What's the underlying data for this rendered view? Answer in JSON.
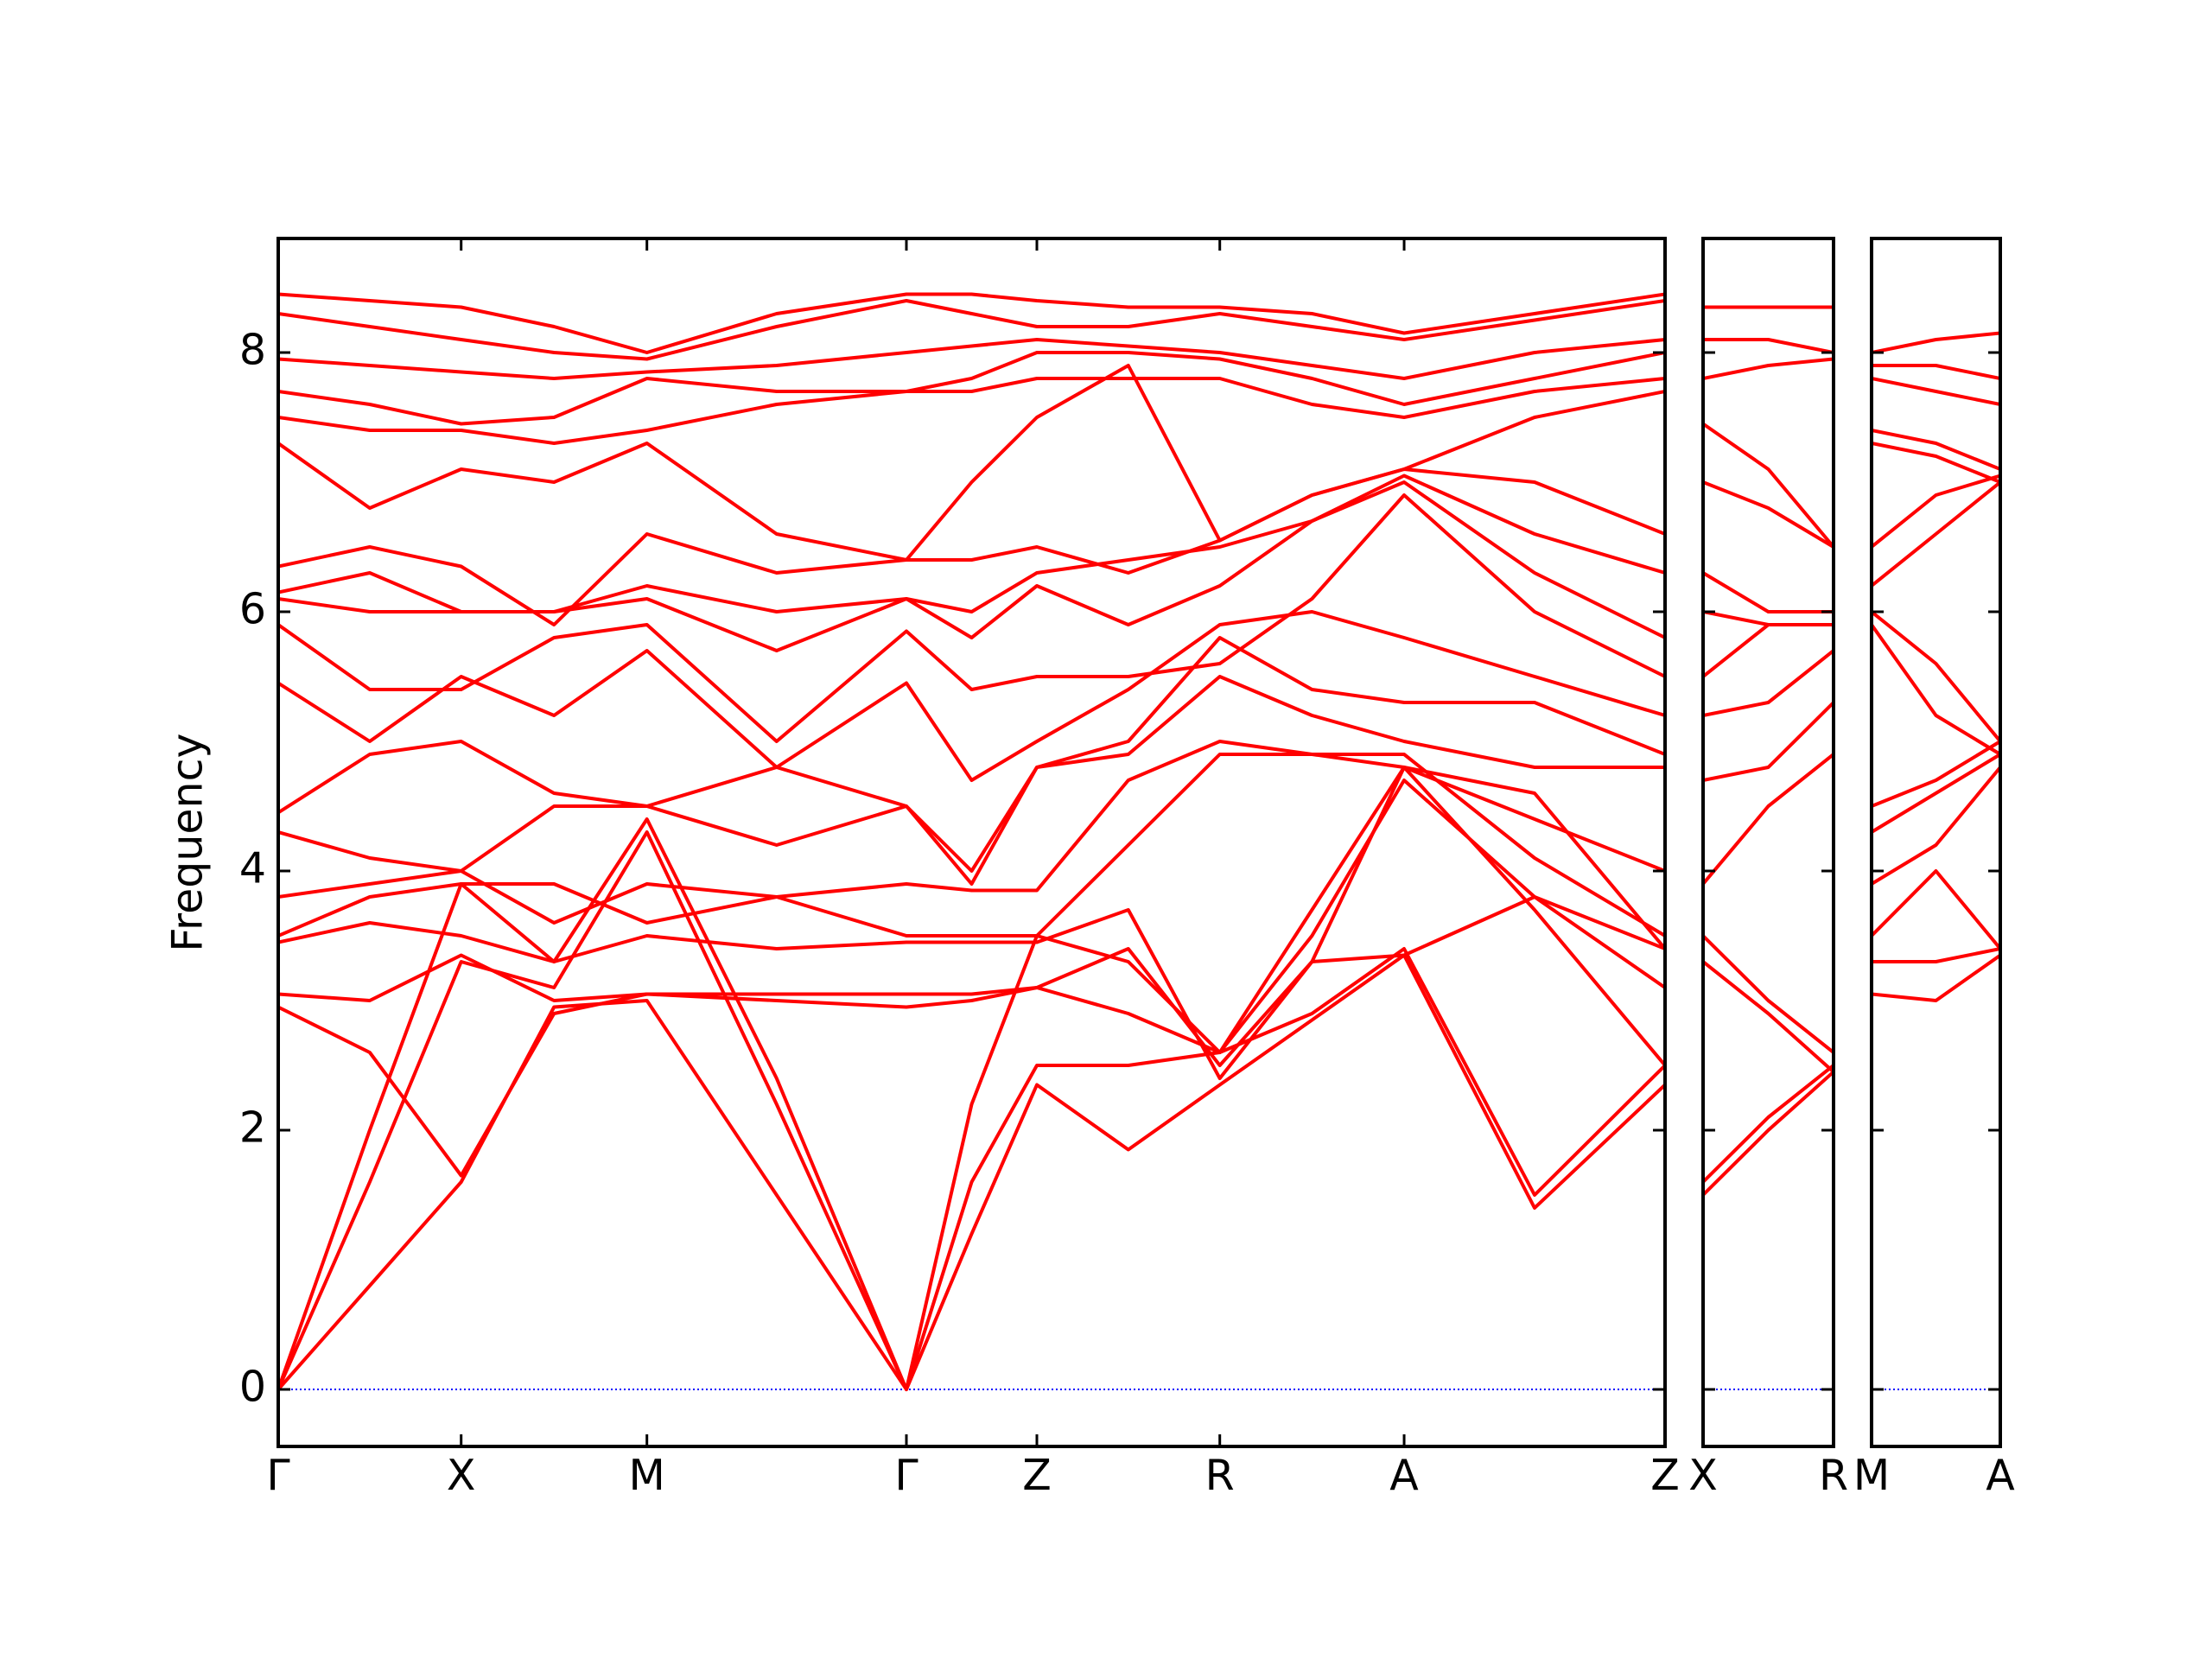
{
  "chart_data": [
    {
      "type": "line",
      "ylabel": "Frequency",
      "color": "#ff0000",
      "ylim": [
        -0.44,
        8.88
      ],
      "yticks": [
        0,
        2,
        4,
        6,
        8
      ],
      "show_ytick_labels": true,
      "reference_line": {
        "value": 0,
        "color": "#0000ff"
      },
      "xlim": [
        0,
        9.78
      ],
      "xticks": [
        {
          "value": 0,
          "label": "Γ"
        },
        {
          "value": 1.29,
          "label": "X"
        },
        {
          "value": 2.6,
          "label": "M"
        },
        {
          "value": 4.43,
          "label": "Γ"
        },
        {
          "value": 5.35,
          "label": "Z"
        },
        {
          "value": 6.64,
          "label": "R"
        },
        {
          "value": 7.94,
          "label": "A"
        },
        {
          "value": 9.78,
          "label": "Z"
        }
      ],
      "x": [
        0,
        0.645,
        1.29,
        1.945,
        2.6,
        3.515,
        4.43,
        4.89,
        5.35,
        5.995,
        6.64,
        7.29,
        7.94,
        8.86,
        9.78
      ],
      "series": [
        {
          "values": [
            0,
            0.8,
            1.6,
            2.95,
            3.0,
            1.5,
            0,
            1.2,
            2.35,
            1.85,
            2.35,
            2.85,
            3.35,
            1.4,
            2.35
          ]
        },
        {
          "values": [
            0,
            1.6,
            3.3,
            3.1,
            4.3,
            2.2,
            0,
            1.6,
            2.5,
            2.5,
            2.6,
            2.9,
            3.4,
            1.5,
            2.5
          ]
        },
        {
          "values": [
            0,
            2.0,
            3.9,
            3.3,
            4.4,
            2.4,
            0,
            2.2,
            3.5,
            3.3,
            2.6,
            3.5,
            4.7,
            3.8,
            3.4
          ]
        },
        {
          "values": [
            2.95,
            2.6,
            1.65,
            2.9,
            3.05,
            3.0,
            2.95,
            3.0,
            3.1,
            2.9,
            2.6,
            3.7,
            4.8,
            3.7,
            2.5
          ]
        },
        {
          "values": [
            3.05,
            3.0,
            3.35,
            3.0,
            3.05,
            3.05,
            3.05,
            3.05,
            3.1,
            3.4,
            2.5,
            3.3,
            3.35,
            3.8,
            3.1
          ]
        },
        {
          "values": [
            3.45,
            3.6,
            3.5,
            3.3,
            3.5,
            3.4,
            3.45,
            3.45,
            3.45,
            3.7,
            2.4,
            3.3,
            4.8,
            4.6,
            3.4
          ]
        },
        {
          "values": [
            3.5,
            3.8,
            3.9,
            3.9,
            3.6,
            3.8,
            3.5,
            3.5,
            3.5,
            4.2,
            4.9,
            4.9,
            4.9,
            4.1,
            3.5
          ]
        },
        {
          "values": [
            3.8,
            3.9,
            4.0,
            3.6,
            3.9,
            3.8,
            3.9,
            3.85,
            3.85,
            4.7,
            5.0,
            4.9,
            4.8,
            4.4,
            4.0
          ]
        },
        {
          "values": [
            4.3,
            4.1,
            4.0,
            4.5,
            4.5,
            4.8,
            4.5,
            4.0,
            4.8,
            4.9,
            5.5,
            5.2,
            5.0,
            4.8,
            4.8
          ]
        },
        {
          "values": [
            4.45,
            4.9,
            5.0,
            4.6,
            4.5,
            4.2,
            4.5,
            3.9,
            4.8,
            5.0,
            5.8,
            5.4,
            5.3,
            5.3,
            4.9
          ]
        },
        {
          "values": [
            5.45,
            5.0,
            5.5,
            5.2,
            5.7,
            4.8,
            5.45,
            4.7,
            5.0,
            5.4,
            5.9,
            6.0,
            5.8,
            5.5,
            5.2
          ]
        },
        {
          "values": [
            5.9,
            5.4,
            5.4,
            5.8,
            5.9,
            5.0,
            5.85,
            5.4,
            5.5,
            5.5,
            5.6,
            6.1,
            6.9,
            6.0,
            5.5
          ]
        },
        {
          "values": [
            6.1,
            6.0,
            6.0,
            6.0,
            6.1,
            5.7,
            6.1,
            5.8,
            6.2,
            5.9,
            6.2,
            6.7,
            7.0,
            6.3,
            5.8
          ]
        },
        {
          "values": [
            6.15,
            6.3,
            6.0,
            6.0,
            6.2,
            6.0,
            6.1,
            6.0,
            6.3,
            6.4,
            6.5,
            6.7,
            7.05,
            6.6,
            6.3
          ]
        },
        {
          "values": [
            6.35,
            6.5,
            6.35,
            5.9,
            6.6,
            6.3,
            6.4,
            6.4,
            6.5,
            6.3,
            6.55,
            6.9,
            7.1,
            7.0,
            6.6
          ]
        },
        {
          "values": [
            7.3,
            6.8,
            7.1,
            7.0,
            7.3,
            6.6,
            6.4,
            7.0,
            7.5,
            7.9,
            6.55,
            6.9,
            7.1,
            7.5,
            7.7
          ]
        },
        {
          "values": [
            7.5,
            7.4,
            7.4,
            7.3,
            7.4,
            7.6,
            7.7,
            7.7,
            7.8,
            7.8,
            7.8,
            7.6,
            7.5,
            7.7,
            7.8
          ]
        },
        {
          "values": [
            7.7,
            7.6,
            7.45,
            7.5,
            7.8,
            7.7,
            7.7,
            7.8,
            8.0,
            8.0,
            7.95,
            7.8,
            7.6,
            7.8,
            8.0
          ]
        },
        {
          "values": [
            7.95,
            7.9,
            7.85,
            7.8,
            7.85,
            7.9,
            8.0,
            8.05,
            8.1,
            8.05,
            8.0,
            7.9,
            7.8,
            8.0,
            8.1
          ]
        },
        {
          "values": [
            8.3,
            8.2,
            8.1,
            8.0,
            7.95,
            8.2,
            8.4,
            8.3,
            8.2,
            8.2,
            8.3,
            8.2,
            8.1,
            8.25,
            8.4
          ]
        },
        {
          "values": [
            8.45,
            8.4,
            8.35,
            8.2,
            8.0,
            8.3,
            8.45,
            8.45,
            8.4,
            8.35,
            8.35,
            8.3,
            8.15,
            8.3,
            8.45
          ]
        }
      ]
    },
    {
      "type": "line",
      "color": "#ff0000",
      "ylim": [
        -0.44,
        8.88
      ],
      "yticks": [
        0,
        2,
        4,
        6,
        8
      ],
      "show_ytick_labels": false,
      "reference_line": {
        "value": 0,
        "color": "#0000ff"
      },
      "xlim": [
        0,
        0.92
      ],
      "xticks": [
        {
          "value": 0,
          "label": "X"
        },
        {
          "value": 0.92,
          "label": "R"
        }
      ],
      "x": [
        0,
        0.46,
        0.92
      ],
      "series": [
        {
          "values": [
            1.5,
            2.0,
            2.45
          ]
        },
        {
          "values": [
            1.6,
            2.1,
            2.5
          ]
        },
        {
          "values": [
            3.3,
            2.9,
            2.45
          ]
        },
        {
          "values": [
            3.5,
            3.0,
            2.6
          ]
        },
        {
          "values": [
            3.9,
            4.5,
            4.9
          ]
        },
        {
          "values": [
            4.7,
            4.8,
            5.3
          ]
        },
        {
          "values": [
            5.2,
            5.3,
            5.7
          ]
        },
        {
          "values": [
            5.5,
            5.9,
            5.9
          ]
        },
        {
          "values": [
            6.0,
            5.9,
            5.9
          ]
        },
        {
          "values": [
            6.3,
            6.0,
            6.0
          ]
        },
        {
          "values": [
            7.0,
            6.8,
            6.5
          ]
        },
        {
          "values": [
            7.45,
            7.1,
            6.5
          ]
        },
        {
          "values": [
            7.8,
            7.9,
            7.95
          ]
        },
        {
          "values": [
            8.1,
            8.1,
            8.0
          ]
        },
        {
          "values": [
            8.35,
            8.35,
            8.35
          ]
        }
      ]
    },
    {
      "type": "line",
      "color": "#ff0000",
      "ylim": [
        -0.44,
        8.88
      ],
      "yticks": [
        0,
        2,
        4,
        6,
        8
      ],
      "show_ytick_labels": false,
      "reference_line": {
        "value": 0,
        "color": "#0000ff"
      },
      "xlim": [
        0,
        0.91
      ],
      "xticks": [
        {
          "value": 0,
          "label": "M"
        },
        {
          "value": 0.91,
          "label": "A"
        }
      ],
      "x": [
        0,
        0.455,
        0.91
      ],
      "series": [
        {
          "values": [
            3.05,
            3.0,
            3.35
          ]
        },
        {
          "values": [
            3.3,
            3.3,
            3.4
          ]
        },
        {
          "values": [
            3.5,
            4.0,
            3.4
          ]
        },
        {
          "values": [
            3.9,
            4.2,
            4.8
          ]
        },
        {
          "values": [
            4.3,
            4.6,
            4.9
          ]
        },
        {
          "values": [
            4.5,
            4.7,
            5.0
          ]
        },
        {
          "values": [
            5.9,
            5.2,
            4.9
          ]
        },
        {
          "values": [
            6.0,
            5.6,
            5.0
          ]
        },
        {
          "values": [
            6.2,
            6.6,
            7.0
          ]
        },
        {
          "values": [
            6.5,
            6.9,
            7.05
          ]
        },
        {
          "values": [
            7.3,
            7.2,
            7.0
          ]
        },
        {
          "values": [
            7.4,
            7.3,
            7.1
          ]
        },
        {
          "values": [
            7.8,
            7.7,
            7.6
          ]
        },
        {
          "values": [
            7.9,
            7.9,
            7.8
          ]
        },
        {
          "values": [
            8.0,
            8.1,
            8.15
          ]
        }
      ]
    }
  ]
}
